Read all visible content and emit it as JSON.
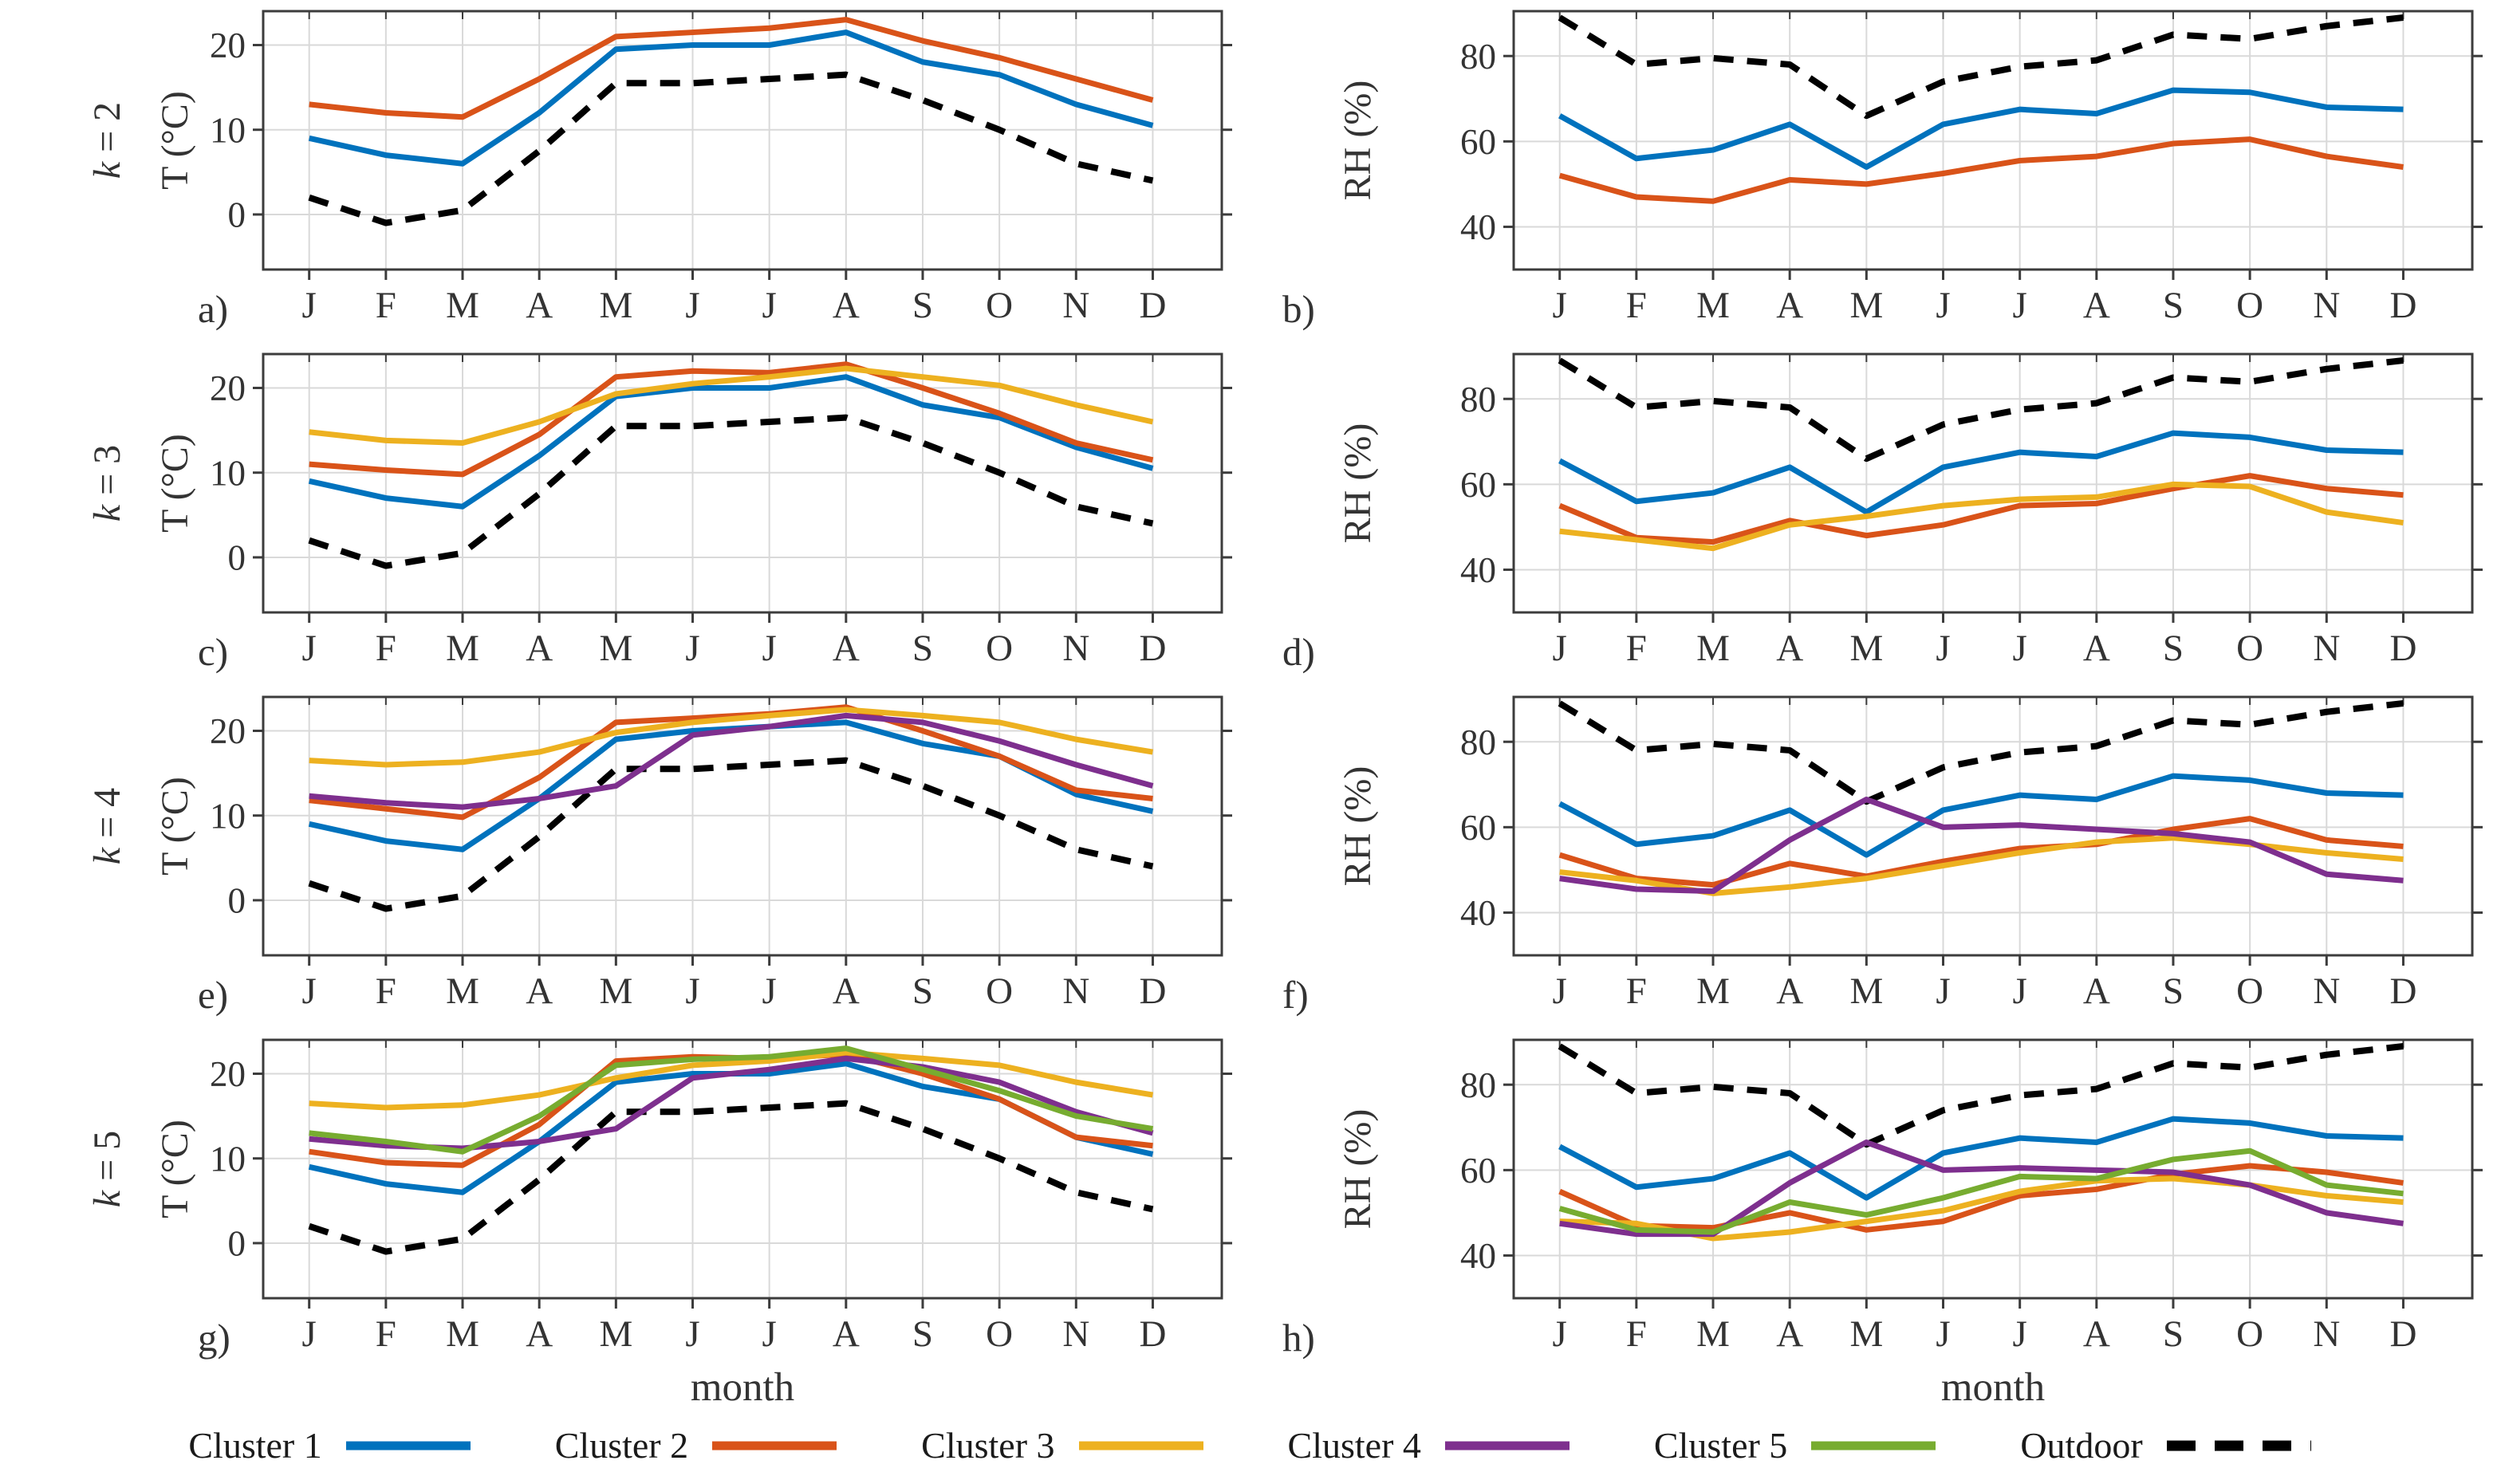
{
  "figure": {
    "months": [
      "J",
      "F",
      "M",
      "A",
      "M",
      "J",
      "J",
      "A",
      "S",
      "O",
      "N",
      "D"
    ],
    "xlabel": "month",
    "temperature_ylabel": "T (°C)",
    "humidity_ylabel": "RH (%)"
  },
  "colors": {
    "cluster1": "#0072BD",
    "cluster2": "#D95319",
    "cluster3": "#EDB120",
    "cluster4": "#7E2F8E",
    "cluster5": "#77AC30",
    "outdoor": "#000000"
  },
  "legend": {
    "items": [
      {
        "label": "Cluster 1",
        "color": "#0072BD",
        "dashed": false
      },
      {
        "label": "Cluster 2",
        "color": "#D95319",
        "dashed": false
      },
      {
        "label": "Cluster 3",
        "color": "#EDB120",
        "dashed": false
      },
      {
        "label": "Cluster 4",
        "color": "#7E2F8E",
        "dashed": false
      },
      {
        "label": "Cluster 5",
        "color": "#77AC30",
        "dashed": false
      },
      {
        "label": "Outdoor",
        "color": "#000000",
        "dashed": true
      }
    ]
  },
  "chart_data": [
    {
      "type": "line",
      "panel": "a)",
      "row_label": "k = 2",
      "ylabel": "T (°C)",
      "xlabel": "",
      "ylim": [
        -6.5,
        24
      ],
      "yticks": [
        0,
        10,
        20
      ],
      "grid": true,
      "categories": [
        "J",
        "F",
        "M",
        "A",
        "M",
        "J",
        "J",
        "A",
        "S",
        "O",
        "N",
        "D"
      ],
      "series": [
        {
          "name": "Outdoor",
          "color": "#000000",
          "style": "dashed",
          "values": [
            2,
            -1,
            0.5,
            7.5,
            15.5,
            15.5,
            16,
            16.5,
            13.5,
            10,
            6,
            4
          ]
        },
        {
          "name": "Cluster 1",
          "color": "#0072BD",
          "style": "solid",
          "values": [
            9,
            7,
            6,
            12,
            19.5,
            20,
            20,
            21.5,
            18,
            16.5,
            13,
            10.5
          ]
        },
        {
          "name": "Cluster 2",
          "color": "#D95319",
          "style": "solid",
          "values": [
            13,
            12,
            11.5,
            16,
            21,
            21.5,
            22,
            23,
            20.5,
            18.5,
            16,
            13.5
          ]
        }
      ]
    },
    {
      "type": "line",
      "panel": "b)",
      "row_label": "",
      "ylabel": "RH (%)",
      "xlabel": "",
      "ylim": [
        30,
        90.5
      ],
      "yticks": [
        40,
        60,
        80
      ],
      "grid": true,
      "categories": [
        "J",
        "F",
        "M",
        "A",
        "M",
        "J",
        "J",
        "A",
        "S",
        "O",
        "N",
        "D"
      ],
      "series": [
        {
          "name": "Outdoor",
          "color": "#000000",
          "style": "dashed",
          "values": [
            89,
            78,
            79.5,
            78,
            66,
            74,
            77.5,
            79,
            85,
            84,
            87,
            89
          ]
        },
        {
          "name": "Cluster 1",
          "color": "#0072BD",
          "style": "solid",
          "values": [
            66,
            56,
            58,
            64,
            54,
            64,
            67.5,
            66.5,
            72,
            71.5,
            68,
            67.5
          ]
        },
        {
          "name": "Cluster 2",
          "color": "#D95319",
          "style": "solid",
          "values": [
            52,
            47,
            46,
            51,
            50,
            52.5,
            55.5,
            56.5,
            59.5,
            60.5,
            56.5,
            54
          ]
        }
      ]
    },
    {
      "type": "line",
      "panel": "c)",
      "row_label": "k = 3",
      "ylabel": "T (°C)",
      "xlabel": "",
      "ylim": [
        -6.5,
        24
      ],
      "yticks": [
        0,
        10,
        20
      ],
      "grid": true,
      "categories": [
        "J",
        "F",
        "M",
        "A",
        "M",
        "J",
        "J",
        "A",
        "S",
        "O",
        "N",
        "D"
      ],
      "series": [
        {
          "name": "Outdoor",
          "color": "#000000",
          "style": "dashed",
          "values": [
            2,
            -1,
            0.5,
            7.5,
            15.5,
            15.5,
            16,
            16.5,
            13.5,
            10,
            6,
            4
          ]
        },
        {
          "name": "Cluster 1",
          "color": "#0072BD",
          "style": "solid",
          "values": [
            9,
            7,
            6,
            12,
            19,
            20,
            20,
            21.3,
            18,
            16.5,
            13,
            10.5
          ]
        },
        {
          "name": "Cluster 2",
          "color": "#D95319",
          "style": "solid",
          "values": [
            11,
            10.3,
            9.8,
            14.5,
            21.3,
            22,
            21.8,
            22.8,
            20,
            17,
            13.5,
            11.5
          ]
        },
        {
          "name": "Cluster 3",
          "color": "#EDB120",
          "style": "solid",
          "values": [
            14.8,
            13.8,
            13.5,
            16,
            19.3,
            20.5,
            21.3,
            22.3,
            21.3,
            20.3,
            18,
            16
          ]
        }
      ]
    },
    {
      "type": "line",
      "panel": "d)",
      "row_label": "",
      "ylabel": "RH (%)",
      "xlabel": "",
      "ylim": [
        30,
        90.5
      ],
      "yticks": [
        40,
        60,
        80
      ],
      "grid": true,
      "categories": [
        "J",
        "F",
        "M",
        "A",
        "M",
        "J",
        "J",
        "A",
        "S",
        "O",
        "N",
        "D"
      ],
      "series": [
        {
          "name": "Outdoor",
          "color": "#000000",
          "style": "dashed",
          "values": [
            89,
            78,
            79.5,
            78,
            66,
            74,
            77.5,
            79,
            85,
            84,
            87,
            89
          ]
        },
        {
          "name": "Cluster 1",
          "color": "#0072BD",
          "style": "solid",
          "values": [
            65.5,
            56,
            58,
            64,
            53.5,
            64,
            67.5,
            66.5,
            72,
            71,
            68,
            67.5
          ]
        },
        {
          "name": "Cluster 2",
          "color": "#D95319",
          "style": "solid",
          "values": [
            55,
            47.5,
            46.5,
            51.5,
            48,
            50.5,
            55,
            55.5,
            59,
            62,
            59,
            57.5
          ]
        },
        {
          "name": "Cluster 3",
          "color": "#EDB120",
          "style": "solid",
          "values": [
            49,
            47,
            45,
            50.5,
            52.5,
            55,
            56.5,
            57,
            60,
            59.5,
            53.5,
            51
          ]
        }
      ]
    },
    {
      "type": "line",
      "panel": "e)",
      "row_label": "k = 4",
      "ylabel": "T (°C)",
      "xlabel": "",
      "ylim": [
        -6.5,
        24
      ],
      "yticks": [
        0,
        10,
        20
      ],
      "grid": true,
      "categories": [
        "J",
        "F",
        "M",
        "A",
        "M",
        "J",
        "J",
        "A",
        "S",
        "O",
        "N",
        "D"
      ],
      "series": [
        {
          "name": "Outdoor",
          "color": "#000000",
          "style": "dashed",
          "values": [
            2,
            -1,
            0.5,
            7.5,
            15.5,
            15.5,
            16,
            16.5,
            13.5,
            10,
            6,
            4
          ]
        },
        {
          "name": "Cluster 1",
          "color": "#0072BD",
          "style": "solid",
          "values": [
            9,
            7,
            6,
            12,
            19,
            20,
            20.5,
            21,
            18.5,
            17,
            12.5,
            10.5
          ]
        },
        {
          "name": "Cluster 2",
          "color": "#D95319",
          "style": "solid",
          "values": [
            11.8,
            10.8,
            9.8,
            14.5,
            21,
            21.5,
            22,
            22.8,
            20,
            17,
            13,
            12
          ]
        },
        {
          "name": "Cluster 3",
          "color": "#EDB120",
          "style": "solid",
          "values": [
            16.5,
            16,
            16.3,
            17.5,
            19.8,
            21,
            21.8,
            22.5,
            21.8,
            21,
            19,
            17.5
          ]
        },
        {
          "name": "Cluster 4",
          "color": "#7E2F8E",
          "style": "solid",
          "values": [
            12.3,
            11.5,
            11,
            12,
            13.5,
            19.5,
            20.5,
            21.8,
            21,
            18.8,
            16,
            13.5
          ]
        }
      ]
    },
    {
      "type": "line",
      "panel": "f)",
      "row_label": "",
      "ylabel": "RH (%)",
      "xlabel": "",
      "ylim": [
        30,
        90.5
      ],
      "yticks": [
        40,
        60,
        80
      ],
      "grid": true,
      "categories": [
        "J",
        "F",
        "M",
        "A",
        "M",
        "J",
        "J",
        "A",
        "S",
        "O",
        "N",
        "D"
      ],
      "series": [
        {
          "name": "Outdoor",
          "color": "#000000",
          "style": "dashed",
          "values": [
            89,
            78,
            79.5,
            78,
            66,
            74,
            77.5,
            79,
            85,
            84,
            87,
            89
          ]
        },
        {
          "name": "Cluster 1",
          "color": "#0072BD",
          "style": "solid",
          "values": [
            65.5,
            56,
            58,
            64,
            53.5,
            64,
            67.5,
            66.5,
            72,
            71,
            68,
            67.5
          ]
        },
        {
          "name": "Cluster 2",
          "color": "#D95319",
          "style": "solid",
          "values": [
            53.5,
            48,
            46.5,
            51.5,
            48.5,
            52,
            55,
            56,
            59.5,
            62,
            57,
            55.5
          ]
        },
        {
          "name": "Cluster 3",
          "color": "#EDB120",
          "style": "solid",
          "values": [
            49.5,
            47.5,
            44.5,
            46,
            48,
            51,
            54,
            56.5,
            57.5,
            56,
            54,
            52.5
          ]
        },
        {
          "name": "Cluster 4",
          "color": "#7E2F8E",
          "style": "solid",
          "values": [
            48,
            45.5,
            45,
            57,
            66.5,
            60,
            60.5,
            59.5,
            58.5,
            56.5,
            49,
            47.5
          ]
        }
      ]
    },
    {
      "type": "line",
      "panel": "g)",
      "row_label": "k = 5",
      "ylabel": "T (°C)",
      "xlabel": "month",
      "ylim": [
        -6.5,
        24
      ],
      "yticks": [
        0,
        10,
        20
      ],
      "grid": true,
      "categories": [
        "J",
        "F",
        "M",
        "A",
        "M",
        "J",
        "J",
        "A",
        "S",
        "O",
        "N",
        "D"
      ],
      "series": [
        {
          "name": "Outdoor",
          "color": "#000000",
          "style": "dashed",
          "values": [
            2,
            -1,
            0.5,
            7.5,
            15.5,
            15.5,
            16,
            16.5,
            13.5,
            10,
            6,
            4
          ]
        },
        {
          "name": "Cluster 1",
          "color": "#0072BD",
          "style": "solid",
          "values": [
            9,
            7,
            6,
            12,
            19,
            20,
            20,
            21.2,
            18.5,
            17,
            12.5,
            10.5
          ]
        },
        {
          "name": "Cluster 2",
          "color": "#D95319",
          "style": "solid",
          "values": [
            10.8,
            9.5,
            9.2,
            14,
            21.5,
            22,
            21.8,
            22.3,
            20,
            17,
            12.5,
            11.5
          ]
        },
        {
          "name": "Cluster 3",
          "color": "#EDB120",
          "style": "solid",
          "values": [
            16.5,
            16,
            16.3,
            17.5,
            19.5,
            21,
            21.5,
            22.5,
            21.8,
            21,
            19,
            17.5
          ]
        },
        {
          "name": "Cluster 4",
          "color": "#7E2F8E",
          "style": "solid",
          "values": [
            12.3,
            11.5,
            11.2,
            12,
            13.5,
            19.5,
            20.5,
            21.8,
            20.8,
            19,
            15.5,
            13
          ]
        },
        {
          "name": "Cluster 5",
          "color": "#77AC30",
          "style": "solid",
          "values": [
            13,
            12,
            10.8,
            15,
            21,
            21.7,
            22,
            23,
            20.5,
            18,
            15,
            13.5
          ]
        }
      ]
    },
    {
      "type": "line",
      "panel": "h)",
      "row_label": "",
      "ylabel": "RH (%)",
      "xlabel": "month",
      "ylim": [
        30,
        90.5
      ],
      "yticks": [
        40,
        60,
        80
      ],
      "grid": true,
      "categories": [
        "J",
        "F",
        "M",
        "A",
        "M",
        "J",
        "J",
        "A",
        "S",
        "O",
        "N",
        "D"
      ],
      "series": [
        {
          "name": "Outdoor",
          "color": "#000000",
          "style": "dashed",
          "values": [
            89,
            78,
            79.5,
            78,
            66,
            74,
            77.5,
            79,
            85,
            84,
            87,
            89
          ]
        },
        {
          "name": "Cluster 1",
          "color": "#0072BD",
          "style": "solid",
          "values": [
            65.5,
            56,
            58,
            64,
            53.5,
            64,
            67.5,
            66.5,
            72,
            71,
            68,
            67.5
          ]
        },
        {
          "name": "Cluster 2",
          "color": "#D95319",
          "style": "solid",
          "values": [
            55,
            47,
            46.5,
            50,
            46,
            48,
            54,
            55.5,
            59,
            61,
            59.5,
            57
          ]
        },
        {
          "name": "Cluster 3",
          "color": "#EDB120",
          "style": "solid",
          "values": [
            48,
            47.5,
            44,
            45.5,
            48,
            50.5,
            55,
            57.5,
            58,
            56.5,
            54,
            52.5
          ]
        },
        {
          "name": "Cluster 4",
          "color": "#7E2F8E",
          "style": "solid",
          "values": [
            47.5,
            45,
            45,
            57,
            66.5,
            60,
            60.5,
            60,
            59.5,
            56.5,
            50,
            47.5
          ]
        },
        {
          "name": "Cluster 5",
          "color": "#77AC30",
          "style": "solid",
          "values": [
            51,
            46,
            45.5,
            52.5,
            49.5,
            53.5,
            58.5,
            58,
            62.5,
            64.5,
            56.5,
            54.5
          ]
        }
      ]
    }
  ]
}
